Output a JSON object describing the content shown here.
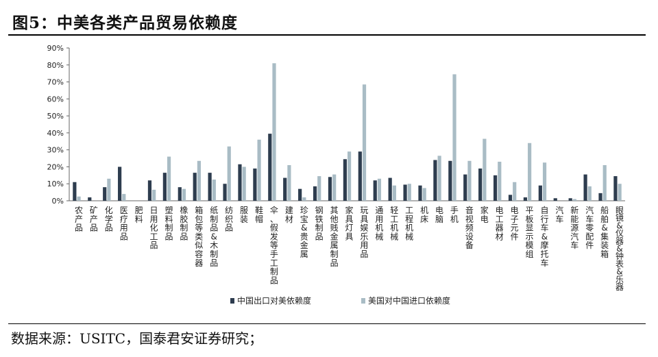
{
  "figure": {
    "title": "图5：中美各类产品贸易依赖度",
    "source": "数据来源：USITC，国泰君安证券研究；"
  },
  "chart_data": {
    "type": "bar",
    "title": "",
    "xlabel": "",
    "ylabel": "",
    "ylim": [
      0,
      90
    ],
    "y_ticks": [
      "0%",
      "10%",
      "20%",
      "30%",
      "40%",
      "50%",
      "60%",
      "70%",
      "80%",
      "90%"
    ],
    "grid": false,
    "legend_position": "bottom",
    "categories": [
      "农产品",
      "矿产品",
      "化学品",
      "医疗用品",
      "肥料",
      "日用化工品",
      "塑料制品",
      "橡胶制品",
      "箱包等类似容器",
      "纸制品&木制品",
      "纺织品",
      "服装",
      "鞋帽",
      "伞、假发等手工制品",
      "建材",
      "珍宝&贵金属",
      "钢铁制品",
      "其他贱金属制品",
      "家具灯具",
      "玩具娱乐用品",
      "通用机械",
      "轻工机械",
      "工程机械",
      "机床",
      "电脑",
      "手机",
      "音视频设备",
      "家电",
      "电工器材",
      "电子元件",
      "平板显示模组",
      "自行车&摩托车",
      "汽车",
      "新能源汽车",
      "汽车零配件",
      "船舶&集装箱",
      "眼镜&仪器&钟表&乐器"
    ],
    "series": [
      {
        "name": "中国出口对美依赖度",
        "color": "#2e3d4f",
        "values": [
          11,
          2,
          8,
          20,
          0,
          12,
          16.5,
          8,
          16.5,
          16.5,
          10,
          21.5,
          19,
          39.5,
          13.5,
          7,
          8.5,
          14,
          24.5,
          29,
          12,
          13.5,
          9.5,
          9,
          24,
          23.5,
          15.5,
          19,
          15,
          3.5,
          2,
          9,
          1.5,
          1.5,
          15.5,
          4.5,
          14.5
        ]
      },
      {
        "name": "美国对中国进口依赖度",
        "color": "#a9bcc5",
        "values": [
          2.5,
          0,
          13,
          4,
          0,
          6.5,
          26,
          7,
          23.5,
          12.5,
          32,
          20,
          36,
          81,
          21,
          2,
          14.5,
          15.5,
          29,
          68.5,
          13,
          9,
          10,
          7.5,
          26.5,
          74.5,
          23.5,
          36.5,
          23,
          11,
          34,
          22.5,
          0,
          1,
          8.5,
          21,
          10
        ]
      }
    ]
  }
}
